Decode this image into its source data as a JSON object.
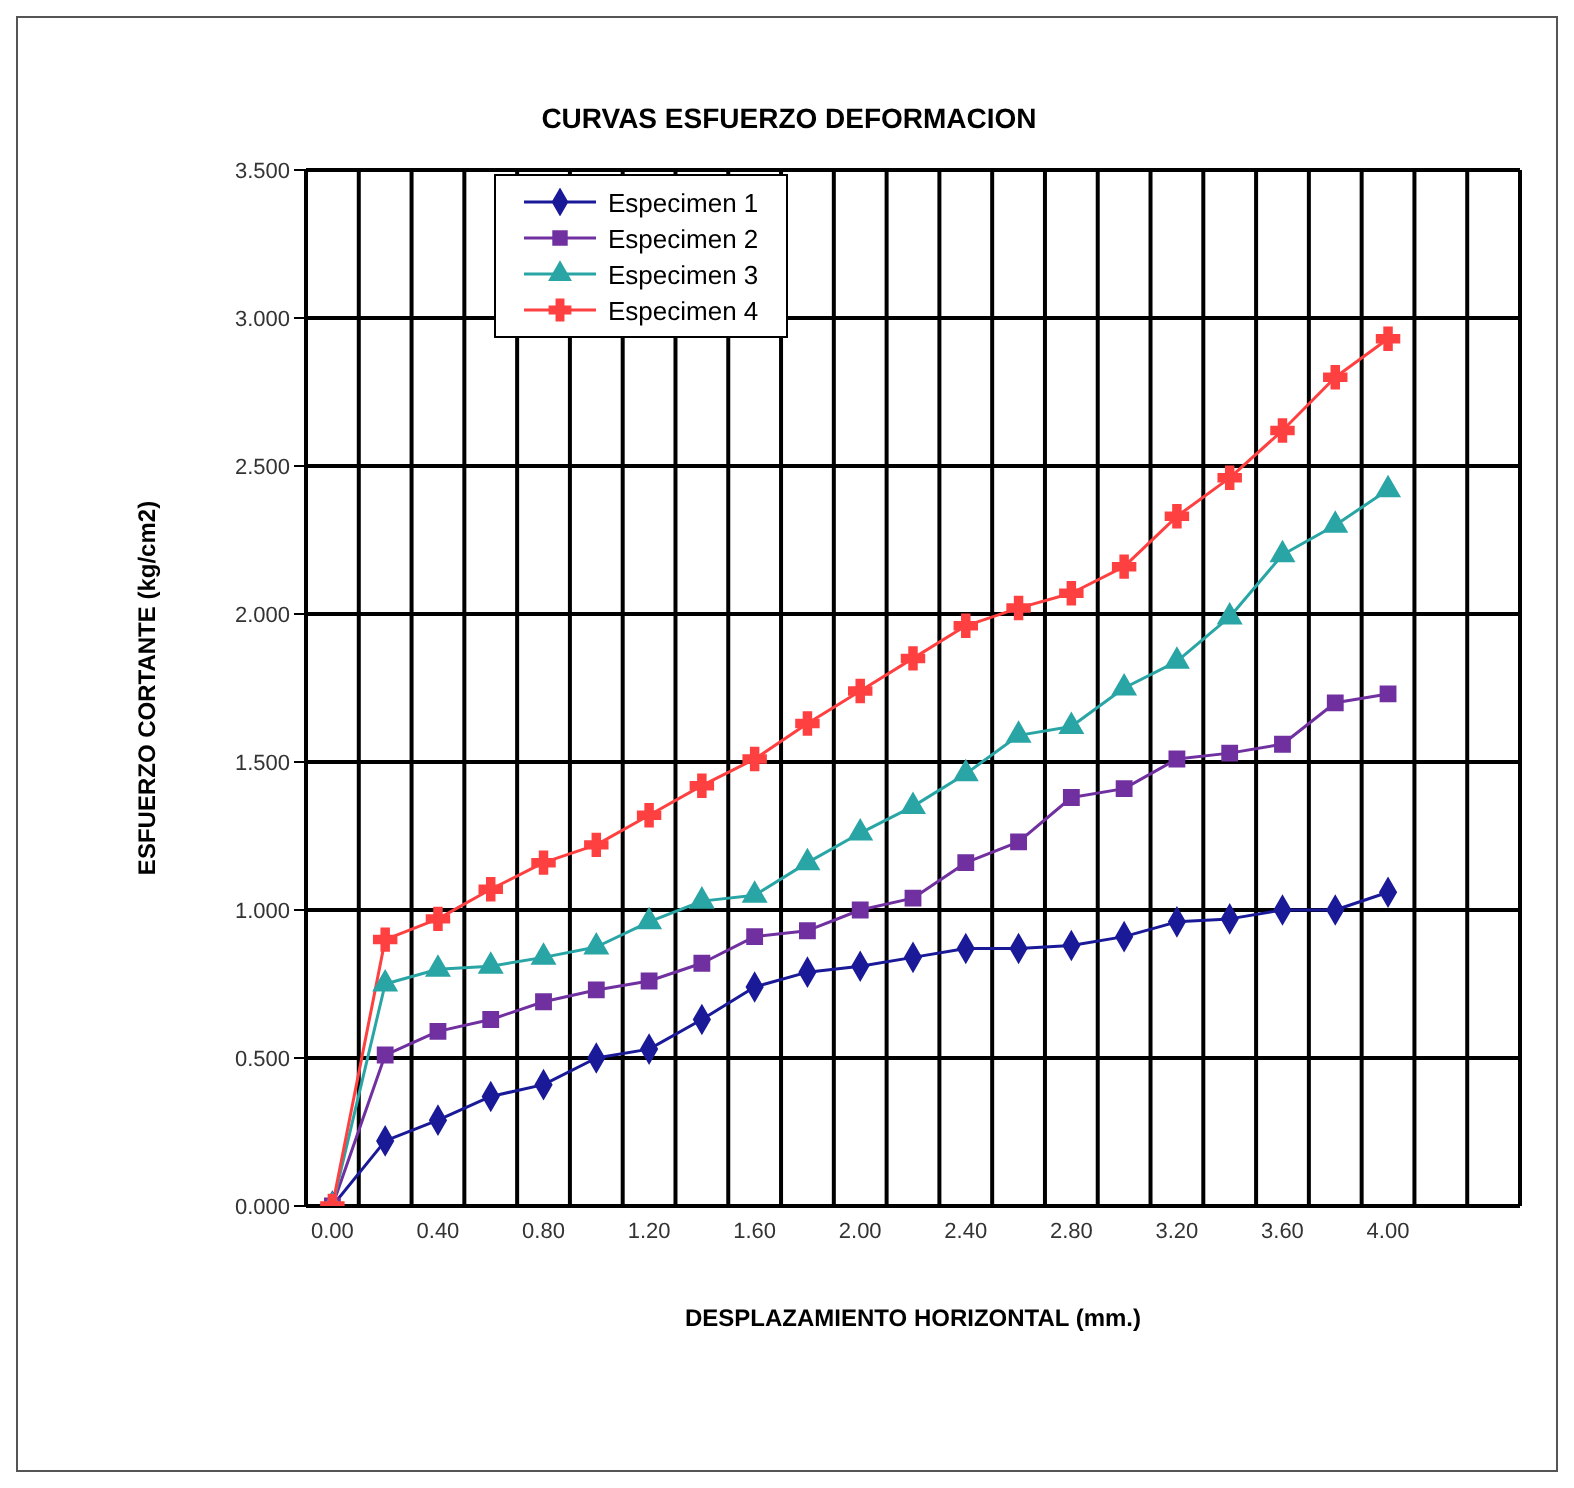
{
  "chart_data": {
    "type": "line",
    "title": "CURVAS ESFUERZO DEFORMACION",
    "xlabel": "DESPLAZAMIENTO HORIZONTAL (mm.)",
    "ylabel": "ESFUERZO CORTANTE (kg/cm2)",
    "categories": [
      "0.00",
      null,
      "0.40",
      null,
      "0.80",
      null,
      "1.20",
      null,
      "1.60",
      null,
      "2.00",
      null,
      "2.40",
      null,
      "2.80",
      null,
      "3.20",
      null,
      "3.60",
      null,
      "4.00",
      null,
      null
    ],
    "ylim": [
      0,
      3.5
    ],
    "yticks": [
      {
        "value": 0,
        "label": "0.000"
      },
      {
        "value": 0.5,
        "label": "0.500"
      },
      {
        "value": 1,
        "label": "1.000"
      },
      {
        "value": 1.5,
        "label": "1.500"
      },
      {
        "value": 2,
        "label": "2.000"
      },
      {
        "value": 2.5,
        "label": "2.500"
      },
      {
        "value": 3,
        "label": "3.000"
      },
      {
        "value": 3.5,
        "label": "3.500"
      }
    ],
    "grid": true,
    "legend": "top",
    "line_style": "solid",
    "series": [
      {
        "name": "Especimen 1",
        "color": "#1a1a99",
        "marker": "diamond",
        "values": [
          0,
          0.22,
          0.29,
          0.37,
          0.41,
          0.5,
          0.53,
          0.63,
          0.74,
          0.79,
          0.81,
          0.84,
          0.87,
          0.87,
          0.88,
          0.91,
          0.96,
          0.97,
          1.0,
          1.0,
          1.06,
          null,
          null
        ]
      },
      {
        "name": "Especimen 2",
        "color": "#7030a0",
        "marker": "square",
        "values": [
          0,
          0.51,
          0.59,
          0.63,
          0.69,
          0.73,
          0.76,
          0.82,
          0.91,
          0.93,
          1.0,
          1.04,
          1.16,
          1.23,
          1.38,
          1.41,
          1.51,
          1.53,
          1.56,
          1.7,
          1.73,
          null,
          null
        ]
      },
      {
        "name": "Especimen 3",
        "color": "#2aa5a5",
        "marker": "triangle",
        "values": [
          0,
          0.75,
          0.8,
          0.81,
          0.84,
          0.875,
          0.96,
          1.03,
          1.05,
          1.16,
          1.26,
          1.35,
          1.46,
          1.59,
          1.62,
          1.75,
          1.84,
          1.99,
          2.2,
          2.3,
          2.42,
          null,
          null
        ]
      },
      {
        "name": "Especimen 4",
        "color": "#ff4040",
        "marker": "cross",
        "values": [
          0,
          0.9,
          0.97,
          1.07,
          1.16,
          1.22,
          1.32,
          1.42,
          1.51,
          1.63,
          1.74,
          1.85,
          1.96,
          2.02,
          2.07,
          2.16,
          2.33,
          2.46,
          2.62,
          2.8,
          2.93,
          null,
          null
        ]
      }
    ]
  }
}
